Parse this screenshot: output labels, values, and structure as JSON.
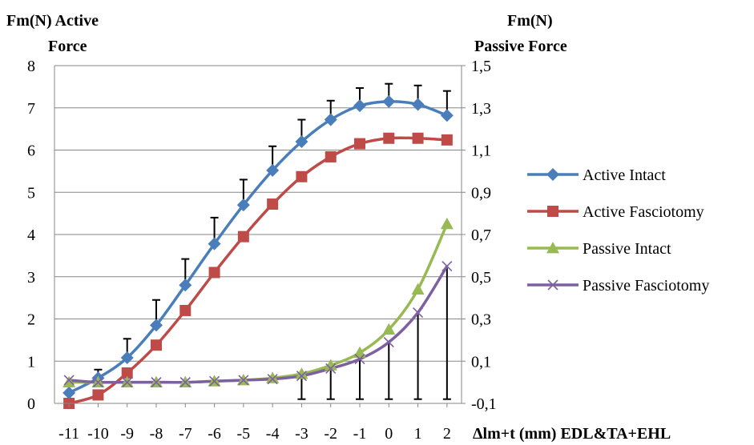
{
  "chart_data": {
    "type": "line",
    "left_axis_title": [
      "Fm(N) Active",
      "Force"
    ],
    "right_axis_title": [
      "Fm(N)",
      "Passive Force"
    ],
    "xlabel": "Δlm+t (mm) EDL&TA+EHL",
    "x": [
      -11,
      -10,
      -9,
      -8,
      -7,
      -6,
      -5,
      -4,
      -3,
      -2,
      -1,
      0,
      1,
      2
    ],
    "x_tick_labels": [
      "-11",
      "-10",
      "-9",
      "-8",
      "-7",
      "-6",
      "-5",
      "-4",
      "-3",
      "-2",
      "-1",
      "0",
      "1",
      "2"
    ],
    "y_left_ticks": [
      "0",
      "1",
      "2",
      "3",
      "4",
      "5",
      "6",
      "7",
      "8"
    ],
    "y_left_range": [
      0,
      8
    ],
    "y_right_ticks": [
      "-0,1",
      "0,1",
      "0,3",
      "0,5",
      "0,7",
      "0,9",
      "1,1",
      "1,3",
      "1,5"
    ],
    "y_right_range": [
      -0.1,
      1.5
    ],
    "grid": "horizontal",
    "legend_position": "right",
    "series": [
      {
        "name": "Active Intact",
        "axis": "left",
        "marker": "diamond",
        "color": "#4A7EBB",
        "values": [
          0.25,
          0.6,
          1.08,
          1.85,
          2.8,
          3.78,
          4.7,
          5.52,
          6.2,
          6.72,
          7.05,
          7.15,
          7.08,
          6.82
        ],
        "error_plus": [
          0.0,
          0.2,
          0.45,
          0.6,
          0.62,
          0.62,
          0.6,
          0.57,
          0.52,
          0.45,
          0.42,
          0.42,
          0.45,
          0.58
        ]
      },
      {
        "name": "Active Fasciotomy",
        "axis": "left",
        "marker": "square",
        "color": "#BE4B48",
        "values": [
          0.0,
          0.2,
          0.72,
          1.38,
          2.2,
          3.1,
          3.95,
          4.72,
          5.37,
          5.84,
          6.15,
          6.28,
          6.28,
          6.24
        ],
        "error_plus": []
      },
      {
        "name": "Passive Intact",
        "axis": "right",
        "marker": "triangle",
        "color": "#98B954",
        "values": [
          0.0,
          0.0,
          0.0,
          0.0,
          0.0,
          0.005,
          0.01,
          0.02,
          0.04,
          0.08,
          0.14,
          0.25,
          0.44,
          0.75
        ],
        "error_plus": []
      },
      {
        "name": "Passive Fasciotomy",
        "axis": "right",
        "marker": "x",
        "color": "#7D60A0",
        "values": [
          0.01,
          0.0,
          0.0,
          0.0,
          0.0,
          0.005,
          0.01,
          0.015,
          0.03,
          0.065,
          0.11,
          0.19,
          0.33,
          0.55
        ],
        "error_plus": [],
        "error_minus": [
          0.0,
          0.0,
          0.0,
          0.0,
          0.0,
          0.0,
          0.0,
          0.0,
          0.0,
          0.0,
          0.0,
          0.0,
          0.0,
          0.0
        ],
        "error_minus_to_base": [
          false,
          false,
          false,
          false,
          false,
          false,
          false,
          false,
          true,
          true,
          true,
          true,
          true,
          true
        ]
      }
    ]
  }
}
